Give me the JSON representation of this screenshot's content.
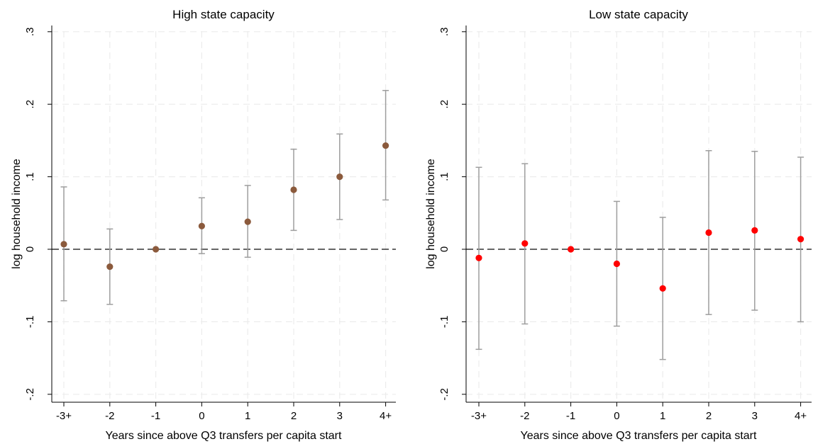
{
  "colors": {
    "high": "#8b5a3c",
    "low": "#ff0000",
    "ci": "#9e9e9e"
  },
  "chart_data": [
    {
      "type": "scatter",
      "title": "High state capacity",
      "xlabel": "Years since above Q3 transfers per capita start",
      "ylabel": "log household income",
      "categories": [
        "-3+",
        "-2",
        "-1",
        "0",
        "1",
        "2",
        "3",
        "4+"
      ],
      "yticks": [
        -0.2,
        -0.1,
        0,
        0.1,
        0.2,
        0.3
      ],
      "ytick_labels": [
        "-.2",
        "-.1",
        "0",
        ".1",
        ".2",
        ".3"
      ],
      "ylim": [
        -0.21,
        0.31
      ],
      "grid": true,
      "series": [
        {
          "values": [
            0.007,
            -0.024,
            0.0,
            0.032,
            0.038,
            0.082,
            0.1,
            0.143
          ],
          "ci_low": [
            -0.071,
            -0.076,
            0.0,
            -0.006,
            -0.011,
            0.026,
            0.041,
            0.068
          ],
          "ci_high": [
            0.086,
            0.028,
            0.0,
            0.071,
            0.088,
            0.138,
            0.159,
            0.219
          ]
        }
      ]
    },
    {
      "type": "scatter",
      "title": "Low state capacity",
      "xlabel": "Years since above Q3 transfers per capita start",
      "ylabel": "log household income",
      "categories": [
        "-3+",
        "-2",
        "-1",
        "0",
        "1",
        "2",
        "3",
        "4+"
      ],
      "yticks": [
        -0.2,
        -0.1,
        0,
        0.1,
        0.2,
        0.3
      ],
      "ytick_labels": [
        "-.2",
        "-.1",
        "0",
        ".1",
        ".2",
        ".3"
      ],
      "ylim": [
        -0.21,
        0.31
      ],
      "grid": true,
      "series": [
        {
          "values": [
            -0.012,
            0.008,
            0.0,
            -0.02,
            -0.054,
            0.023,
            0.026,
            0.014
          ],
          "ci_low": [
            -0.138,
            -0.103,
            0.0,
            -0.106,
            -0.152,
            -0.09,
            -0.084,
            -0.1
          ],
          "ci_high": [
            0.113,
            0.118,
            0.0,
            0.066,
            0.044,
            0.136,
            0.135,
            0.127
          ]
        }
      ]
    }
  ]
}
